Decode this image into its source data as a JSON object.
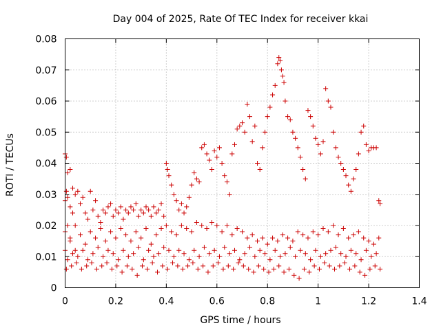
{
  "chart_data": {
    "type": "scatter",
    "title": "Day 004 of 2025, Rate Of TEC Index for receiver kkai",
    "xlabel": "GPS time / hours",
    "ylabel": "ROTI / TECUs",
    "xlim": [
      0,
      1.4
    ],
    "ylim": [
      0,
      0.08
    ],
    "x_ticks": [
      0,
      0.2,
      0.4,
      0.6,
      0.8,
      1,
      1.2,
      1.4
    ],
    "x_tick_labels": [
      "0",
      "0.2",
      "0.4",
      "0.6",
      "0.8",
      "1",
      "1.2",
      "1.4"
    ],
    "y_ticks": [
      0,
      0.01,
      0.02,
      0.03,
      0.04,
      0.05,
      0.06,
      0.07,
      0.08
    ],
    "y_tick_labels": [
      "0",
      "0.01",
      "0.02",
      "0.03",
      "0.04",
      "0.05",
      "0.06",
      "0.07",
      "0.08"
    ],
    "grid": true,
    "marker": "+",
    "color": "#cc0000",
    "series": [
      {
        "name": "ROTI",
        "x": [
          0.0,
          0.0,
          0.0,
          0.005,
          0.005,
          0.01,
          0.01,
          0.01,
          0.02,
          0.02,
          0.02,
          0.03,
          0.03,
          0.04,
          0.04,
          0.05,
          0.06,
          0.07,
          0.08,
          0.09,
          0.1,
          0.11,
          0.12,
          0.13,
          0.14,
          0.15,
          0.16,
          0.17,
          0.18,
          0.19,
          0.2,
          0.21,
          0.22,
          0.23,
          0.24,
          0.25,
          0.26,
          0.27,
          0.28,
          0.29,
          0.3,
          0.31,
          0.32,
          0.33,
          0.34,
          0.35,
          0.36,
          0.37,
          0.38,
          0.39,
          0.4,
          0.405,
          0.41,
          0.42,
          0.43,
          0.44,
          0.45,
          0.46,
          0.47,
          0.48,
          0.49,
          0.5,
          0.51,
          0.52,
          0.53,
          0.54,
          0.55,
          0.56,
          0.57,
          0.58,
          0.59,
          0.6,
          0.61,
          0.62,
          0.63,
          0.64,
          0.65,
          0.66,
          0.67,
          0.68,
          0.69,
          0.7,
          0.71,
          0.72,
          0.73,
          0.74,
          0.75,
          0.76,
          0.77,
          0.78,
          0.79,
          0.8,
          0.81,
          0.82,
          0.83,
          0.84,
          0.845,
          0.85,
          0.855,
          0.86,
          0.865,
          0.87,
          0.88,
          0.89,
          0.9,
          0.91,
          0.92,
          0.93,
          0.94,
          0.95,
          0.96,
          0.97,
          0.98,
          0.99,
          1.0,
          1.01,
          1.02,
          1.03,
          1.04,
          1.05,
          1.06,
          1.07,
          1.08,
          1.09,
          1.1,
          1.11,
          1.12,
          1.13,
          1.14,
          1.15,
          1.16,
          1.17,
          1.18,
          1.19,
          1.2,
          1.21,
          1.22,
          1.23,
          1.24,
          1.245,
          0.0,
          0.02,
          0.04,
          0.06,
          0.08,
          0.1,
          0.12,
          0.14,
          0.16,
          0.18,
          0.2,
          0.22,
          0.24,
          0.26,
          0.28,
          0.3,
          0.32,
          0.34,
          0.36,
          0.38,
          0.4,
          0.42,
          0.44,
          0.46,
          0.48,
          0.5,
          0.52,
          0.54,
          0.56,
          0.58,
          0.6,
          0.62,
          0.64,
          0.66,
          0.68,
          0.7,
          0.72,
          0.74,
          0.76,
          0.78,
          0.8,
          0.82,
          0.84,
          0.86,
          0.88,
          0.9,
          0.92,
          0.94,
          0.96,
          0.98,
          1.0,
          1.02,
          1.04,
          1.06,
          1.08,
          1.1,
          1.12,
          1.14,
          1.16,
          1.18,
          1.2,
          1.22,
          1.24,
          0.01,
          0.03,
          0.05,
          0.07,
          0.09,
          0.11,
          0.13,
          0.15,
          0.17,
          0.19,
          0.21,
          0.23,
          0.25,
          0.27,
          0.29,
          0.31,
          0.33,
          0.35,
          0.37,
          0.39,
          0.41,
          0.43,
          0.45,
          0.47,
          0.49,
          0.51,
          0.53,
          0.55,
          0.57,
          0.59,
          0.61,
          0.63,
          0.65,
          0.67,
          0.69,
          0.71,
          0.73,
          0.75,
          0.77,
          0.79,
          0.81,
          0.83,
          0.85,
          0.87,
          0.89,
          0.91,
          0.93,
          0.95,
          0.97,
          0.99,
          1.01,
          1.03,
          1.05,
          1.07,
          1.09,
          1.11,
          1.13,
          1.15,
          1.17,
          1.19,
          1.21,
          1.23,
          0.005,
          0.025,
          0.045,
          0.065,
          0.085,
          0.105,
          0.125,
          0.145,
          0.165,
          0.185,
          0.205,
          0.225,
          0.245,
          0.265,
          0.285,
          0.305,
          0.325,
          0.345,
          0.365,
          0.385,
          0.405,
          0.425,
          0.445,
          0.465,
          0.485,
          0.505,
          0.525,
          0.545,
          0.565,
          0.585,
          0.605,
          0.625,
          0.645,
          0.665,
          0.685,
          0.705,
          0.725,
          0.745,
          0.765,
          0.785,
          0.805,
          0.825,
          0.845,
          0.865,
          0.885,
          0.905,
          0.925,
          0.945,
          0.965,
          0.985,
          1.005,
          1.025,
          1.045,
          1.065,
          1.085,
          1.105,
          1.125,
          1.145,
          1.165,
          1.185,
          1.205,
          1.225,
          1.245
        ],
        "y": [
          0.043,
          0.028,
          0.018,
          0.042,
          0.031,
          0.037,
          0.029,
          0.02,
          0.038,
          0.026,
          0.016,
          0.032,
          0.024,
          0.03,
          0.02,
          0.031,
          0.027,
          0.029,
          0.024,
          0.022,
          0.031,
          0.025,
          0.028,
          0.023,
          0.021,
          0.025,
          0.024,
          0.026,
          0.027,
          0.023,
          0.025,
          0.024,
          0.026,
          0.022,
          0.025,
          0.024,
          0.026,
          0.025,
          0.027,
          0.023,
          0.025,
          0.024,
          0.026,
          0.025,
          0.023,
          0.026,
          0.024,
          0.025,
          0.027,
          0.023,
          0.04,
          0.038,
          0.036,
          0.033,
          0.03,
          0.028,
          0.025,
          0.027,
          0.024,
          0.026,
          0.029,
          0.033,
          0.037,
          0.035,
          0.034,
          0.045,
          0.046,
          0.043,
          0.041,
          0.038,
          0.044,
          0.042,
          0.045,
          0.04,
          0.036,
          0.034,
          0.03,
          0.043,
          0.046,
          0.051,
          0.052,
          0.053,
          0.05,
          0.059,
          0.055,
          0.047,
          0.052,
          0.04,
          0.038,
          0.045,
          0.05,
          0.055,
          0.058,
          0.062,
          0.065,
          0.072,
          0.074,
          0.073,
          0.07,
          0.068,
          0.066,
          0.06,
          0.055,
          0.054,
          0.05,
          0.048,
          0.045,
          0.042,
          0.038,
          0.035,
          0.057,
          0.055,
          0.052,
          0.048,
          0.046,
          0.043,
          0.047,
          0.064,
          0.06,
          0.058,
          0.05,
          0.045,
          0.042,
          0.04,
          0.038,
          0.036,
          0.033,
          0.031,
          0.035,
          0.038,
          0.043,
          0.05,
          0.052,
          0.046,
          0.044,
          0.045,
          0.045,
          0.045,
          0.028,
          0.027,
          0.012,
          0.015,
          0.012,
          0.017,
          0.014,
          0.018,
          0.016,
          0.019,
          0.015,
          0.018,
          0.016,
          0.019,
          0.017,
          0.015,
          0.018,
          0.016,
          0.019,
          0.014,
          0.017,
          0.019,
          0.02,
          0.018,
          0.017,
          0.02,
          0.019,
          0.018,
          0.021,
          0.02,
          0.019,
          0.021,
          0.02,
          0.018,
          0.02,
          0.017,
          0.019,
          0.018,
          0.016,
          0.017,
          0.015,
          0.016,
          0.014,
          0.016,
          0.015,
          0.017,
          0.016,
          0.015,
          0.018,
          0.017,
          0.016,
          0.018,
          0.017,
          0.019,
          0.018,
          0.02,
          0.017,
          0.019,
          0.016,
          0.017,
          0.018,
          0.016,
          0.015,
          0.014,
          0.016,
          0.009,
          0.011,
          0.01,
          0.012,
          0.009,
          0.011,
          0.013,
          0.01,
          0.012,
          0.011,
          0.009,
          0.012,
          0.01,
          0.011,
          0.013,
          0.009,
          0.012,
          0.01,
          0.011,
          0.013,
          0.012,
          0.01,
          0.012,
          0.011,
          0.009,
          0.012,
          0.01,
          0.013,
          0.011,
          0.012,
          0.01,
          0.013,
          0.011,
          0.012,
          0.009,
          0.011,
          0.013,
          0.01,
          0.012,
          0.011,
          0.009,
          0.012,
          0.01,
          0.011,
          0.013,
          0.01,
          0.012,
          0.011,
          0.009,
          0.012,
          0.01,
          0.011,
          0.012,
          0.013,
          0.011,
          0.01,
          0.012,
          0.011,
          0.009,
          0.012,
          0.01,
          0.011,
          0.006,
          0.007,
          0.008,
          0.006,
          0.007,
          0.008,
          0.006,
          0.007,
          0.008,
          0.006,
          0.007,
          0.005,
          0.007,
          0.006,
          0.004,
          0.007,
          0.006,
          0.008,
          0.005,
          0.007,
          0.006,
          0.008,
          0.007,
          0.006,
          0.007,
          0.008,
          0.006,
          0.007,
          0.005,
          0.007,
          0.008,
          0.006,
          0.007,
          0.006,
          0.008,
          0.007,
          0.006,
          0.005,
          0.007,
          0.006,
          0.005,
          0.006,
          0.007,
          0.005,
          0.006,
          0.004,
          0.003,
          0.006,
          0.005,
          0.007,
          0.006,
          0.008,
          0.007,
          0.006,
          0.007,
          0.008,
          0.006,
          0.007,
          0.005,
          0.004,
          0.006,
          0.007,
          0.006
        ]
      }
    ]
  }
}
